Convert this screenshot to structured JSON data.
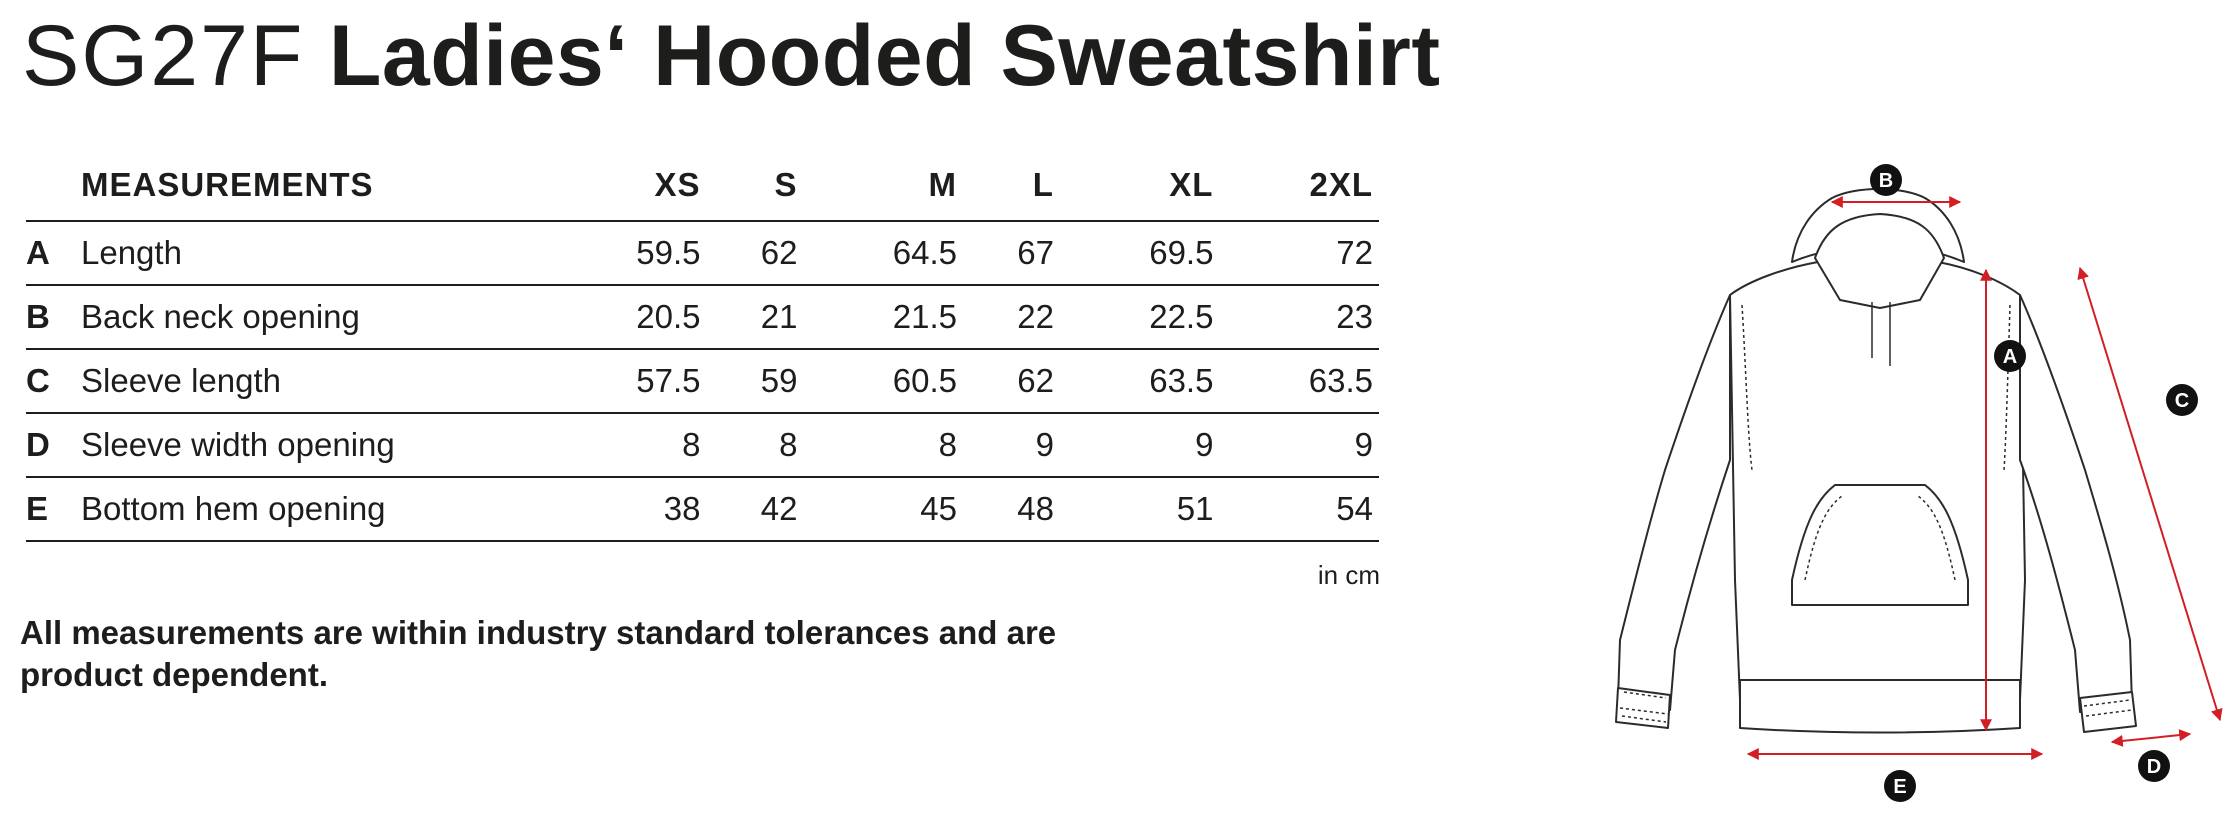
{
  "title": {
    "code": "SG27F",
    "name": "Ladies‘ Hooded Sweatshirt"
  },
  "table": {
    "header": {
      "label": "MEASUREMENTS",
      "sizes": [
        "XS",
        "S",
        "M",
        "L",
        "XL",
        "2XL"
      ]
    },
    "rows": [
      {
        "letter": "A",
        "label": "Length",
        "values": [
          "59.5",
          "62",
          "64.5",
          "67",
          "69.5",
          "72"
        ]
      },
      {
        "letter": "B",
        "label": "Back neck opening",
        "values": [
          "20.5",
          "21",
          "21.5",
          "22",
          "22.5",
          "23"
        ]
      },
      {
        "letter": "C",
        "label": "Sleeve length",
        "values": [
          "57.5",
          "59",
          "60.5",
          "62",
          "63.5",
          "63.5"
        ]
      },
      {
        "letter": "D",
        "label": "Sleeve width opening",
        "values": [
          "8",
          "8",
          "8",
          "9",
          "9",
          "9"
        ]
      },
      {
        "letter": "E",
        "label": "Bottom hem opening",
        "values": [
          "38",
          "42",
          "45",
          "48",
          "51",
          "54"
        ]
      }
    ]
  },
  "unit": "in cm",
  "note": "All measurements are within industry standard tolerances and are product dependent.",
  "diagram": {
    "markers": [
      "A",
      "B",
      "C",
      "D",
      "E"
    ],
    "colors": {
      "arrow": "#d21f26",
      "outline": "#2b2b2b",
      "badge": "#111111"
    }
  }
}
